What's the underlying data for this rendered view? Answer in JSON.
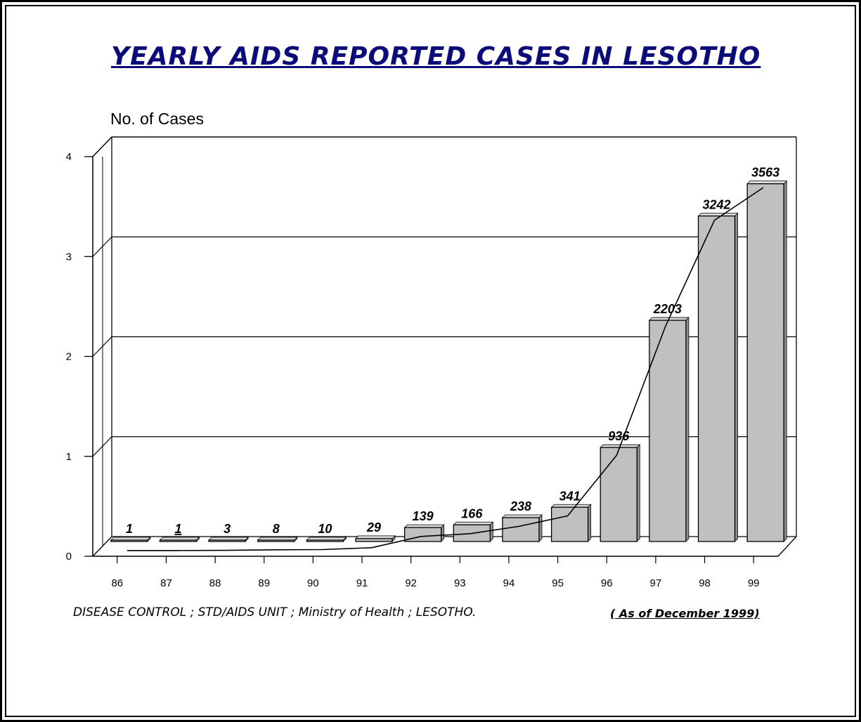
{
  "title": "YEARLY AIDS REPORTED CASES IN LESOTHO",
  "footer": {
    "source": "DISEASE CONTROL ;  STD/AIDS UNIT ; Ministry of Health ; LESOTHO.",
    "date_note": "( As of December 1999)"
  },
  "colors": {
    "title": "#0b0b7a",
    "bar_face": "#c0c0c0",
    "bar_top": "#d9d9d9",
    "bar_side": "#8f8f8f",
    "highlight_label": "#1a1a8c"
  },
  "chart_data": {
    "type": "bar",
    "title": "YEARLY AIDS REPORTED CASES IN LESOTHO",
    "ylabel": "No. of Cases",
    "xlabel": "",
    "categories": [
      "86",
      "87",
      "88",
      "89",
      "90",
      "91",
      "92",
      "93",
      "94",
      "95",
      "96",
      "97",
      "98",
      "99"
    ],
    "values": [
      1,
      1,
      3,
      8,
      10,
      29,
      139,
      166,
      238,
      341,
      936,
      2203,
      3242,
      3563
    ],
    "data_labels": [
      "1",
      "1",
      "3",
      "8",
      "10",
      "29",
      "139",
      "166",
      "238",
      "341",
      "936",
      "2203",
      "3242",
      "3563"
    ],
    "highlight_label_index": 1,
    "yticks": [
      "0",
      "1",
      "2",
      "3",
      "4"
    ],
    "ylim": [
      0,
      4000
    ],
    "trend_line": true,
    "grid": true,
    "style": "3d"
  }
}
